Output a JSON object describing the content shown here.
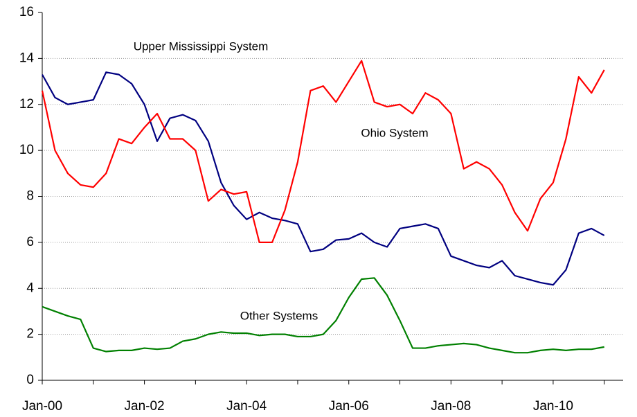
{
  "chart_data": {
    "type": "line",
    "x": [
      2000,
      2000.25,
      2000.5,
      2000.75,
      2001,
      2001.25,
      2001.5,
      2001.75,
      2002,
      2002.25,
      2002.5,
      2002.75,
      2003,
      2003.25,
      2003.5,
      2003.75,
      2004,
      2004.25,
      2004.5,
      2004.75,
      2005,
      2005.25,
      2005.5,
      2005.75,
      2006,
      2006.25,
      2006.5,
      2006.75,
      2007,
      2007.25,
      2007.5,
      2007.75,
      2008,
      2008.25,
      2008.5,
      2008.75,
      2009,
      2009.25,
      2009.5,
      2009.75,
      2010,
      2010.25,
      2010.5,
      2010.75,
      2011
    ],
    "series": [
      {
        "name": "Upper Mississippi System",
        "color": "#000080",
        "values": [
          13.3,
          12.3,
          12.0,
          12.1,
          12.2,
          13.4,
          13.3,
          12.9,
          12.0,
          10.4,
          11.4,
          11.55,
          11.3,
          10.4,
          8.6,
          7.6,
          7.0,
          7.3,
          7.05,
          6.95,
          6.8,
          5.6,
          5.7,
          6.1,
          6.15,
          6.4,
          6.0,
          5.8,
          6.6,
          6.7,
          6.8,
          6.6,
          5.4,
          5.2,
          5.0,
          4.9,
          5.2,
          4.55,
          4.4,
          4.25,
          4.15,
          4.8,
          6.4,
          6.6,
          6.3
        ]
      },
      {
        "name": "Ohio System",
        "color": "#ff0000",
        "values": [
          12.6,
          10.0,
          9.0,
          8.5,
          8.4,
          9.0,
          10.5,
          10.3,
          11.0,
          11.6,
          10.5,
          10.5,
          10.0,
          7.8,
          8.3,
          8.1,
          8.2,
          6.0,
          6.0,
          7.4,
          9.5,
          12.6,
          12.8,
          12.1,
          13.0,
          13.9,
          12.1,
          11.9,
          12.0,
          11.6,
          12.5,
          12.2,
          11.6,
          9.2,
          9.5,
          9.2,
          8.5,
          7.3,
          6.5,
          7.9,
          8.6,
          10.5,
          13.2,
          12.5,
          13.5
        ]
      },
      {
        "name": "Other Systems",
        "color": "#008000",
        "values": [
          3.2,
          3.0,
          2.8,
          2.65,
          1.4,
          1.25,
          1.3,
          1.3,
          1.4,
          1.35,
          1.4,
          1.7,
          1.8,
          2.0,
          2.1,
          2.05,
          2.05,
          1.95,
          2.0,
          2.0,
          1.9,
          1.9,
          2.0,
          2.6,
          3.6,
          4.4,
          4.45,
          3.7,
          2.6,
          1.4,
          1.4,
          1.5,
          1.55,
          1.6,
          1.55,
          1.4,
          1.3,
          1.2,
          1.2,
          1.3,
          1.35,
          1.3,
          1.35,
          1.35,
          1.45
        ]
      }
    ],
    "xlim": [
      2000,
      2011.37
    ],
    "xticks": [
      {
        "value": 2000,
        "label": "Jan-00"
      },
      {
        "value": 2002,
        "label": "Jan-02"
      },
      {
        "value": 2004,
        "label": "Jan-04"
      },
      {
        "value": 2006,
        "label": "Jan-06"
      },
      {
        "value": 2008,
        "label": "Jan-08"
      },
      {
        "value": 2010,
        "label": "Jan-10"
      }
    ],
    "xminorticks": [
      2001,
      2003,
      2005,
      2007,
      2009,
      2011
    ],
    "ylim": [
      0,
      16
    ],
    "yticks": [
      0,
      2,
      4,
      6,
      8,
      10,
      12,
      14,
      16
    ],
    "grid": true
  }
}
